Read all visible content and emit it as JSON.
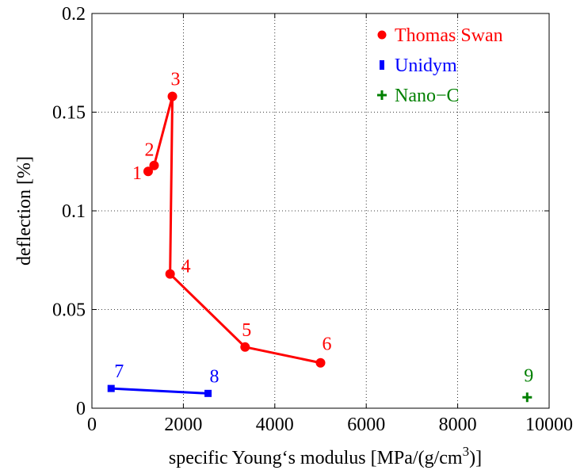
{
  "chart_data": {
    "type": "line",
    "xlabel": "specific Young‘s modulus [MPa/(g/cm",
    "xlabel_sup": "3",
    "xlabel_tail": ")]",
    "ylabel": "deflection [%]",
    "xlim": [
      0,
      10000
    ],
    "ylim": [
      0,
      0.2
    ],
    "xticks": [
      0,
      2000,
      4000,
      6000,
      8000,
      10000
    ],
    "xtick_labels": [
      "0",
      "2000",
      "4000",
      "6000",
      "8000",
      "10000"
    ],
    "yticks": [
      0,
      0.05,
      0.1,
      0.15,
      0.2
    ],
    "ytick_labels": [
      "0",
      "0.05",
      "0.1",
      "0.15",
      "0.2"
    ],
    "grid": true,
    "legend_position": "top-right",
    "series": [
      {
        "name": "Thomas Swan",
        "color": "#ff0000",
        "marker": "circle",
        "connected": true,
        "points": [
          {
            "x": 1230,
            "y": 0.12,
            "label": "1"
          },
          {
            "x": 1360,
            "y": 0.123,
            "label": "2"
          },
          {
            "x": 1760,
            "y": 0.158,
            "label": "3"
          },
          {
            "x": 1710,
            "y": 0.068,
            "label": "4"
          },
          {
            "x": 3350,
            "y": 0.031,
            "label": "5"
          },
          {
            "x": 5000,
            "y": 0.023,
            "label": "6"
          }
        ]
      },
      {
        "name": "Unidym",
        "color": "#0000ff",
        "marker": "square",
        "connected": true,
        "points": [
          {
            "x": 420,
            "y": 0.01,
            "label": "7"
          },
          {
            "x": 2540,
            "y": 0.0075,
            "label": "8"
          }
        ]
      },
      {
        "name": "Nano−C",
        "color": "#008000",
        "marker": "plus",
        "connected": false,
        "points": [
          {
            "x": 9520,
            "y": 0.0055,
            "label": "9"
          }
        ]
      }
    ]
  }
}
